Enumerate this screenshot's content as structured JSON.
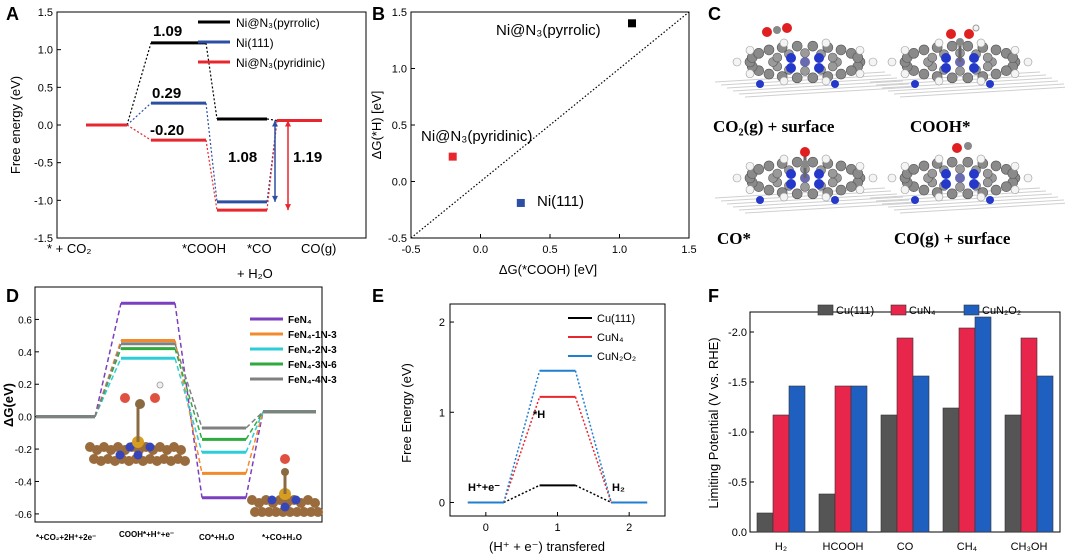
{
  "panels": {
    "A": "A",
    "B": "B",
    "C": "C",
    "D": "D",
    "E": "E",
    "F": "F"
  },
  "colors": {
    "black": "#000000",
    "blue": "#2d4fa3",
    "red": "#e8262d",
    "F_gray": "#555555",
    "F_red": "#e8254a",
    "F_blue": "#1f5fbf"
  },
  "chart_data": [
    {
      "id": "A",
      "type": "line",
      "ylabel": "Free energy (eV)",
      "ylim": [
        -1.5,
        1.5
      ],
      "yticks": [
        "1.5",
        "1.0",
        "0.5",
        "0.0",
        "-0.5",
        "-1.0",
        "-1.5"
      ],
      "xlabels": [
        "* + CO₂",
        "*COOH",
        "*CO",
        "CO(g)"
      ],
      "xsublabel": "+ H₂O",
      "series": [
        {
          "name": "Ni@N₃(pyrrolic)",
          "color": "#000000",
          "values": [
            0,
            1.09,
            0.08,
            0.06
          ]
        },
        {
          "name": "Ni(111)",
          "color": "#2d4fa3",
          "values": [
            0,
            0.29,
            -1.02,
            0.06
          ]
        },
        {
          "name": "Ni@N₃(pyridinic)",
          "color": "#e8262d",
          "values": [
            0,
            -0.2,
            -1.13,
            0.06
          ]
        }
      ],
      "labels": {
        "pyrrolic_cooh": "1.09",
        "ni111_cooh": "0.29",
        "pyridinic_cooh": "-0.20",
        "ni111_diff": "1.08",
        "pyridinic_diff": "1.19"
      }
    },
    {
      "id": "B",
      "type": "scatter",
      "xlabel": "ΔG(*COOH) [eV]",
      "ylabel": "ΔG(*H) [eV]",
      "xlim": [
        -0.5,
        1.5
      ],
      "ylim": [
        -0.5,
        1.5
      ],
      "xticks": [
        "-0.5",
        "0.0",
        "0.5",
        "1.0",
        "1.5"
      ],
      "yticks": [
        "1.5",
        "1.0",
        "0.5",
        "0.0",
        "-0.5"
      ],
      "points": [
        {
          "name": "Ni@N₃(pyrrolic)",
          "x": 1.09,
          "y": 1.4,
          "color": "#000000"
        },
        {
          "name": "Ni@N₃(pyridinic)",
          "x": -0.2,
          "y": 0.22,
          "color": "#e8262d"
        },
        {
          "name": "Ni(111)",
          "x": 0.29,
          "y": -0.19,
          "color": "#2d4fa3"
        }
      ]
    },
    {
      "id": "C",
      "type": "image",
      "captions": [
        "CO₂(g) + surface",
        "COOH*",
        "CO*",
        "CO(g) + surface"
      ]
    },
    {
      "id": "D",
      "type": "line",
      "ylabel": "ΔG(eV)",
      "ylim": [
        -0.65,
        0.8
      ],
      "yticks": [
        "0.6",
        "0.4",
        "0.2",
        "0.0",
        "-0.2",
        "-0.4",
        "-0.6"
      ],
      "xlabels": [
        "*+CO₂+2H⁺+2e⁻",
        "COOH*+H⁺+e⁻",
        "CO*+H₂O",
        "*+CO+H₂O"
      ],
      "series": [
        {
          "name": "FeN₄",
          "color": "#7b3fbf",
          "values": [
            0,
            0.7,
            -0.5,
            0.03
          ]
        },
        {
          "name": "FeN₄-1N-3",
          "color": "#f28a2e",
          "values": [
            0,
            0.47,
            -0.35,
            0.03
          ]
        },
        {
          "name": "FeN₄-2N-3",
          "color": "#2dcdd8",
          "values": [
            0,
            0.36,
            -0.22,
            0.03
          ]
        },
        {
          "name": "FeN₄-3N-6",
          "color": "#2eaa3e",
          "values": [
            0,
            0.42,
            -0.14,
            0.03
          ]
        },
        {
          "name": "FeN₄-4N-3",
          "color": "#808080",
          "values": [
            0,
            0.45,
            -0.07,
            0.03
          ]
        }
      ]
    },
    {
      "id": "E",
      "type": "line",
      "ylabel": "Free Energy (eV)",
      "xlabel": "(H⁺ + e⁻) transfered",
      "xlim": [
        -0.5,
        2.5
      ],
      "ylim": [
        -0.15,
        2.2
      ],
      "xticks": [
        "0",
        "1",
        "2"
      ],
      "yticks": [
        "2",
        "1",
        "0"
      ],
      "annot": {
        "start": "H⁺+e⁻",
        "mid": "*H",
        "end": "H₂"
      },
      "series": [
        {
          "name": "Cu(111)",
          "color": "#000000",
          "values": [
            0,
            0.19,
            0
          ]
        },
        {
          "name": "CuN₄",
          "color": "#e8262d",
          "values": [
            0,
            1.17,
            0
          ]
        },
        {
          "name": "CuN₂O₂",
          "color": "#1f7fd1",
          "values": [
            0,
            1.46,
            0
          ]
        }
      ]
    },
    {
      "id": "F",
      "type": "bar",
      "ylabel": "Limiting Potential (V vs. RHE)",
      "ylim": [
        0,
        -2.2
      ],
      "yticks": [
        "-2.0",
        "-1.5",
        "-1.0",
        "-0.5",
        "0.0"
      ],
      "categories": [
        "H₂",
        "HCOOH",
        "CO",
        "CH₄",
        "CH₃OH"
      ],
      "series": [
        {
          "name": "Cu(111)",
          "color": "#555555",
          "values": [
            -0.19,
            -0.38,
            -1.17,
            -1.24,
            -1.17
          ]
        },
        {
          "name": "CuN₄",
          "color": "#e8254a",
          "values": [
            -1.17,
            -1.46,
            -1.94,
            -2.04,
            -1.94
          ]
        },
        {
          "name": "CuN₂O₂",
          "color": "#1f5fbf",
          "values": [
            -1.46,
            -1.46,
            -1.56,
            -2.15,
            -1.56
          ]
        }
      ]
    }
  ]
}
